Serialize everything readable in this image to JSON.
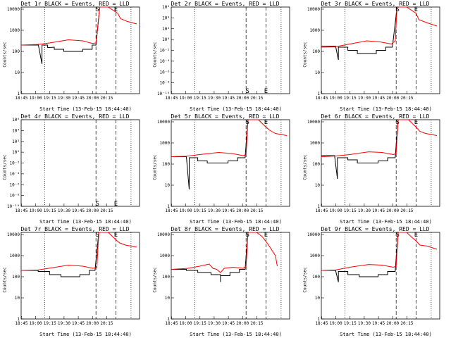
{
  "xtick_labels": [
    "18:45",
    "19:00",
    "19:15",
    "19:30",
    "19:45",
    "20:00",
    "20:15"
  ],
  "ylabel": "Counts/sec",
  "xlabel": "Start Time (13-Feb-15 18:44:40)",
  "colors": {
    "events": "#000000",
    "lld": "#ff0000"
  },
  "chart_data": [
    {
      "type": "line",
      "title": "Det 1r BLACK = Events, RED = LLD",
      "scale": "log",
      "ytick_labels": [
        "1",
        "10",
        "100",
        "1000",
        "10000"
      ],
      "ylim_exp": [
        0,
        4.1
      ],
      "markers": [
        "S",
        "E"
      ],
      "marker_pos_exp": [
        4.0,
        4.0
      ],
      "series": [
        {
          "name": "Events",
          "points": [
            [
              0,
              2.3
            ],
            [
              18,
              2.3
            ],
            [
              18,
              2.35
            ],
            [
              22,
              1.4
            ],
            [
              22,
              2.3
            ],
            [
              28,
              2.3
            ],
            [
              28,
              2.18
            ],
            [
              35,
              2.2
            ],
            [
              35,
              2.1
            ],
            [
              45,
              2.1
            ],
            [
              45,
              2.0
            ],
            [
              65,
              2.0
            ],
            [
              65,
              2.1
            ],
            [
              75,
              2.1
            ],
            [
              75,
              2.3
            ],
            [
              79,
              2.3
            ],
            [
              83,
              4.1
            ]
          ]
        },
        {
          "name": "LLD",
          "points": [
            [
              0,
              2.3
            ],
            [
              18,
              2.33
            ],
            [
              30,
              2.4
            ],
            [
              50,
              2.55
            ],
            [
              65,
              2.5
            ],
            [
              75,
              2.38
            ],
            [
              79,
              2.4
            ],
            [
              83,
              4.1
            ],
            [
              92,
              4.1
            ],
            [
              102,
              3.8
            ],
            [
              105,
              3.55
            ],
            [
              112,
              3.42
            ],
            [
              122,
              3.3
            ]
          ]
        }
      ]
    },
    {
      "type": "line",
      "title": "Det 2r BLACK = Events, RED = LLD",
      "scale": "linear",
      "ytick_labels": [
        "10⁻¹⁰",
        "10⁻⁸",
        "10⁻⁶",
        "10⁻⁴",
        "10⁻²",
        "10⁰",
        "10²",
        "10⁴",
        "10⁶"
      ],
      "ylim_exp": [
        -10,
        6
      ],
      "markers": [
        "S",
        "E"
      ],
      "marker_pos_exp": [
        -9.5,
        -9.5
      ],
      "series": []
    },
    {
      "type": "line",
      "title": "Det 3r BLACK = Events, RED = LLD",
      "scale": "log",
      "ytick_labels": [
        "1",
        "10",
        "100",
        "1000",
        "10000"
      ],
      "ylim_exp": [
        0,
        4.1
      ],
      "markers": [
        "S",
        "E"
      ],
      "marker_pos_exp": [
        4.0,
        4.0
      ],
      "series": [
        {
          "name": "Events",
          "points": [
            [
              0,
              2.25
            ],
            [
              15,
              2.25
            ],
            [
              18,
              1.6
            ],
            [
              18,
              2.2
            ],
            [
              28,
              2.2
            ],
            [
              28,
              2.05
            ],
            [
              38,
              2.05
            ],
            [
              38,
              1.9
            ],
            [
              58,
              1.9
            ],
            [
              58,
              2.05
            ],
            [
              68,
              2.05
            ],
            [
              68,
              2.2
            ],
            [
              75,
              2.2
            ],
            [
              80,
              4.1
            ]
          ]
        },
        {
          "name": "LLD",
          "points": [
            [
              0,
              2.2
            ],
            [
              15,
              2.22
            ],
            [
              30,
              2.35
            ],
            [
              48,
              2.5
            ],
            [
              62,
              2.45
            ],
            [
              74,
              2.35
            ],
            [
              78,
              2.5
            ],
            [
              80,
              4.1
            ],
            [
              90,
              4.1
            ],
            [
              100,
              3.8
            ],
            [
              103,
              3.5
            ],
            [
              112,
              3.35
            ],
            [
              122,
              3.2
            ]
          ]
        }
      ]
    },
    {
      "type": "line",
      "title": "Det 4r BLACK = Events, RED = LLD",
      "scale": "linear",
      "ytick_labels": [
        "10⁻¹⁰",
        "10⁻⁸",
        "10⁻⁶",
        "10⁻⁴",
        "10⁻²",
        "10⁰",
        "10²",
        "10⁴",
        "10⁶"
      ],
      "ylim_exp": [
        -10,
        6
      ],
      "markers": [
        "S",
        "E"
      ],
      "marker_pos_exp": [
        -9.5,
        -9.5
      ],
      "series": []
    },
    {
      "type": "line",
      "title": "Det 5r BLACK = Events, RED = LLD",
      "scale": "log",
      "ytick_labels": [
        "1",
        "10",
        "100",
        "1000",
        "10000"
      ],
      "ylim_exp": [
        0,
        4.1
      ],
      "markers": [
        "S",
        "E"
      ],
      "marker_pos_exp": [
        4.0,
        4.0
      ],
      "series": [
        {
          "name": "Events",
          "points": [
            [
              0,
              2.35
            ],
            [
              16,
              2.35
            ],
            [
              19,
              0.8
            ],
            [
              19,
              2.3
            ],
            [
              28,
              2.3
            ],
            [
              28,
              2.15
            ],
            [
              38,
              2.15
            ],
            [
              38,
              2.05
            ],
            [
              60,
              2.05
            ],
            [
              60,
              2.15
            ],
            [
              70,
              2.15
            ],
            [
              70,
              2.3
            ],
            [
              78,
              2.3
            ],
            [
              81,
              4.1
            ]
          ]
        },
        {
          "name": "LLD",
          "points": [
            [
              0,
              2.35
            ],
            [
              16,
              2.37
            ],
            [
              30,
              2.45
            ],
            [
              50,
              2.55
            ],
            [
              64,
              2.5
            ],
            [
              76,
              2.4
            ],
            [
              79,
              2.45
            ],
            [
              81,
              4.1
            ],
            [
              92,
              4.1
            ],
            [
              100,
              3.75
            ],
            [
              104,
              3.6
            ],
            [
              110,
              3.45
            ],
            [
              122,
              3.35
            ]
          ]
        }
      ]
    },
    {
      "type": "line",
      "title": "Det 6r BLACK = Events, RED = LLD",
      "scale": "log",
      "ytick_labels": [
        "1",
        "10",
        "100",
        "1000",
        "10000"
      ],
      "ylim_exp": [
        0,
        4.1
      ],
      "markers": [
        "S",
        "E"
      ],
      "marker_pos_exp": [
        4.0,
        4.0
      ],
      "series": [
        {
          "name": "Events",
          "points": [
            [
              0,
              2.4
            ],
            [
              14,
              2.4
            ],
            [
              17,
              1.3
            ],
            [
              17,
              2.3
            ],
            [
              28,
              2.3
            ],
            [
              28,
              2.2
            ],
            [
              38,
              2.2
            ],
            [
              38,
              2.05
            ],
            [
              60,
              2.05
            ],
            [
              60,
              2.15
            ],
            [
              70,
              2.15
            ],
            [
              70,
              2.3
            ],
            [
              78,
              2.3
            ],
            [
              81,
              4.1
            ]
          ]
        },
        {
          "name": "LLD",
          "points": [
            [
              0,
              2.35
            ],
            [
              14,
              2.38
            ],
            [
              30,
              2.45
            ],
            [
              50,
              2.58
            ],
            [
              64,
              2.55
            ],
            [
              76,
              2.45
            ],
            [
              79,
              2.5
            ],
            [
              81,
              4.1
            ],
            [
              92,
              4.1
            ],
            [
              100,
              3.75
            ],
            [
              104,
              3.55
            ],
            [
              110,
              3.45
            ],
            [
              122,
              3.35
            ]
          ]
        }
      ]
    },
    {
      "type": "line",
      "title": "Det 7r BLACK = Events, RED = LLD",
      "scale": "log",
      "ytick_labels": [
        "1",
        "10",
        "100",
        "1000",
        "10000"
      ],
      "ylim_exp": [
        0,
        4.1
      ],
      "markers": [
        "S",
        "E"
      ],
      "marker_pos_exp": [
        4.0,
        4.0
      ],
      "series": [
        {
          "name": "Events",
          "points": [
            [
              0,
              2.3
            ],
            [
              18,
              2.3
            ],
            [
              18,
              2.25
            ],
            [
              30,
              2.25
            ],
            [
              30,
              2.1
            ],
            [
              42,
              2.1
            ],
            [
              42,
              2.0
            ],
            [
              62,
              2.0
            ],
            [
              62,
              2.1
            ],
            [
              72,
              2.1
            ],
            [
              72,
              2.3
            ],
            [
              78,
              2.3
            ],
            [
              82,
              4.1
            ]
          ]
        },
        {
          "name": "LLD",
          "points": [
            [
              0,
              2.3
            ],
            [
              18,
              2.32
            ],
            [
              32,
              2.42
            ],
            [
              50,
              2.55
            ],
            [
              65,
              2.5
            ],
            [
              76,
              2.4
            ],
            [
              80,
              2.45
            ],
            [
              82,
              4.1
            ],
            [
              92,
              4.1
            ],
            [
              100,
              3.75
            ],
            [
              104,
              3.6
            ],
            [
              110,
              3.5
            ],
            [
              122,
              3.4
            ]
          ]
        }
      ]
    },
    {
      "type": "line",
      "title": "Det 8r BLACK = Events, RED = LLD",
      "scale": "log",
      "ytick_labels": [
        "1",
        "10",
        "100",
        "1000",
        "10000"
      ],
      "ylim_exp": [
        0,
        4.1
      ],
      "markers": [
        "S",
        "E"
      ],
      "marker_pos_exp": [
        4.0,
        4.0
      ],
      "series": [
        {
          "name": "Events",
          "points": [
            [
              0,
              2.35
            ],
            [
              16,
              2.35
            ],
            [
              16,
              2.3
            ],
            [
              28,
              2.3
            ],
            [
              28,
              2.2
            ],
            [
              42,
              2.2
            ],
            [
              42,
              2.1
            ],
            [
              52,
              2.1
            ],
            [
              52,
              1.75
            ],
            [
              52,
              2.05
            ],
            [
              62,
              2.05
            ],
            [
              62,
              2.2
            ],
            [
              72,
              2.2
            ],
            [
              72,
              2.35
            ],
            [
              78,
              2.35
            ],
            [
              81,
              4.1
            ]
          ]
        },
        {
          "name": "LLD",
          "points": [
            [
              0,
              2.35
            ],
            [
              18,
              2.4
            ],
            [
              30,
              2.5
            ],
            [
              40,
              2.6
            ],
            [
              44,
              2.4
            ],
            [
              48,
              2.35
            ],
            [
              52,
              2.2
            ],
            [
              56,
              2.4
            ],
            [
              65,
              2.45
            ],
            [
              76,
              2.4
            ],
            [
              79,
              2.5
            ],
            [
              81,
              4.1
            ],
            [
              90,
              4.1
            ],
            [
              96,
              3.9
            ],
            [
              102,
              3.55
            ],
            [
              110,
              3.0
            ],
            [
              112,
              2.5
            ]
          ]
        }
      ]
    },
    {
      "type": "line",
      "title": "Det 9r BLACK = Events, RED = LLD",
      "scale": "log",
      "ytick_labels": [
        "1",
        "10",
        "100",
        "1000",
        "10000"
      ],
      "ylim_exp": [
        0,
        4.1
      ],
      "markers": [
        "S",
        "E"
      ],
      "marker_pos_exp": [
        4.0,
        4.0
      ],
      "series": [
        {
          "name": "Events",
          "points": [
            [
              0,
              2.3
            ],
            [
              15,
              2.3
            ],
            [
              18,
              1.75
            ],
            [
              18,
              2.25
            ],
            [
              28,
              2.25
            ],
            [
              28,
              2.1
            ],
            [
              40,
              2.1
            ],
            [
              40,
              2.0
            ],
            [
              60,
              2.0
            ],
            [
              60,
              2.1
            ],
            [
              70,
              2.1
            ],
            [
              70,
              2.25
            ],
            [
              78,
              2.25
            ],
            [
              81,
              4.1
            ]
          ]
        },
        {
          "name": "LLD",
          "points": [
            [
              0,
              2.3
            ],
            [
              15,
              2.32
            ],
            [
              30,
              2.45
            ],
            [
              50,
              2.58
            ],
            [
              64,
              2.55
            ],
            [
              76,
              2.45
            ],
            [
              79,
              2.5
            ],
            [
              81,
              4.1
            ],
            [
              90,
              4.1
            ],
            [
              96,
              3.85
            ],
            [
              100,
              3.7
            ],
            [
              104,
              3.5
            ],
            [
              112,
              3.45
            ],
            [
              122,
              3.3
            ]
          ]
        }
      ]
    }
  ]
}
